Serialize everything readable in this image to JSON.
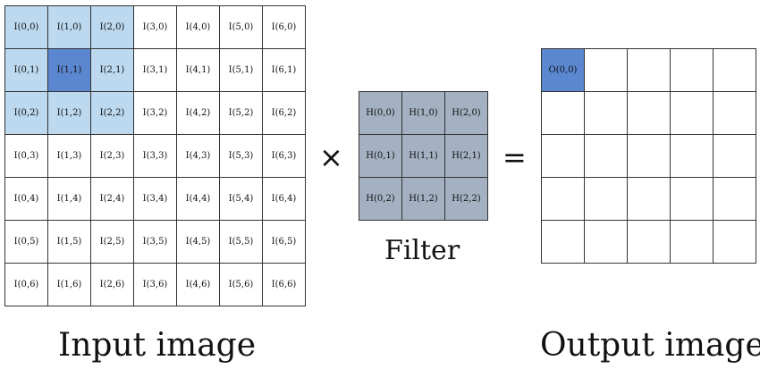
{
  "input": {
    "caption": "Input image",
    "cols": 7,
    "rows": 7,
    "cell_prefix": "I",
    "highlight_light_color": "#bcd9ef",
    "highlight_dark_color": "#5b87d0",
    "kernel_window": {
      "cols": [
        0,
        1,
        2
      ],
      "rows": [
        0,
        1,
        2
      ]
    },
    "center_cell": [
      1,
      1
    ]
  },
  "operators": {
    "times": "×",
    "equals": "="
  },
  "filter": {
    "caption": "Filter",
    "cols": 3,
    "rows": 3,
    "cell_prefix": "H",
    "fill_color": "#a3b1c2"
  },
  "output": {
    "caption": "Output image",
    "cols": 5,
    "rows": 5,
    "highlight_color": "#5b87d0",
    "filled_cell": {
      "col": 0,
      "row": 0,
      "label": "O(0,0)"
    }
  }
}
